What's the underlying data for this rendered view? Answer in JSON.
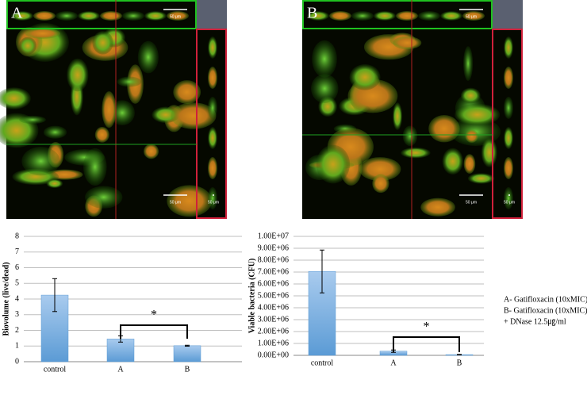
{
  "panels": [
    {
      "label": "A",
      "scale_labels": [
        "50 μm",
        "50 μm",
        "50 μm"
      ]
    },
    {
      "label": "B",
      "scale_labels": [
        "50 μm",
        "50 μm",
        "50 μm"
      ]
    }
  ],
  "legend_lines": [
    "A- Gatifloxacin (10xMIC)",
    "B- Gatifloxacin (10xMIC)",
    "+ DNase 12.5㎍/ml"
  ],
  "chart_data": [
    {
      "type": "bar",
      "ylabel": "Biovolume (live/dead)",
      "categories": [
        "control",
        "A",
        "B"
      ],
      "values": [
        4.25,
        1.45,
        1.02
      ],
      "errors": [
        1.05,
        0.2,
        0.03
      ],
      "color": "#5b9bd5",
      "ylim": [
        0,
        8
      ],
      "yticks": [
        0,
        1,
        2,
        3,
        4,
        5,
        6,
        7,
        8
      ],
      "grid": true,
      "annotation": "*"
    },
    {
      "type": "bar",
      "ylabel": "Viable bacteria (CFU)",
      "categories": [
        "control",
        "A",
        "B"
      ],
      "values": [
        7050000,
        350000,
        60000
      ],
      "errors": [
        1800000,
        100000,
        20000
      ],
      "color": "#5b9bd5",
      "ylim": [
        0,
        10000000
      ],
      "yticks": [
        {
          "value": 0,
          "label": "0.00E+00"
        },
        {
          "value": 1000000,
          "label": "1.00E+06"
        },
        {
          "value": 2000000,
          "label": "2.00E+06"
        },
        {
          "value": 3000000,
          "label": "3.00E+06"
        },
        {
          "value": 4000000,
          "label": "4.00E+06"
        },
        {
          "value": 5000000,
          "label": "5.00E+06"
        },
        {
          "value": 6000000,
          "label": "6.00E+06"
        },
        {
          "value": 7000000,
          "label": "7.00E+06"
        },
        {
          "value": 8000000,
          "label": "8.00E+06"
        },
        {
          "value": 9000000,
          "label": "9.00E+06"
        },
        {
          "value": 10000000,
          "label": "1.00E+07"
        }
      ],
      "grid": true,
      "annotation": "*"
    }
  ]
}
